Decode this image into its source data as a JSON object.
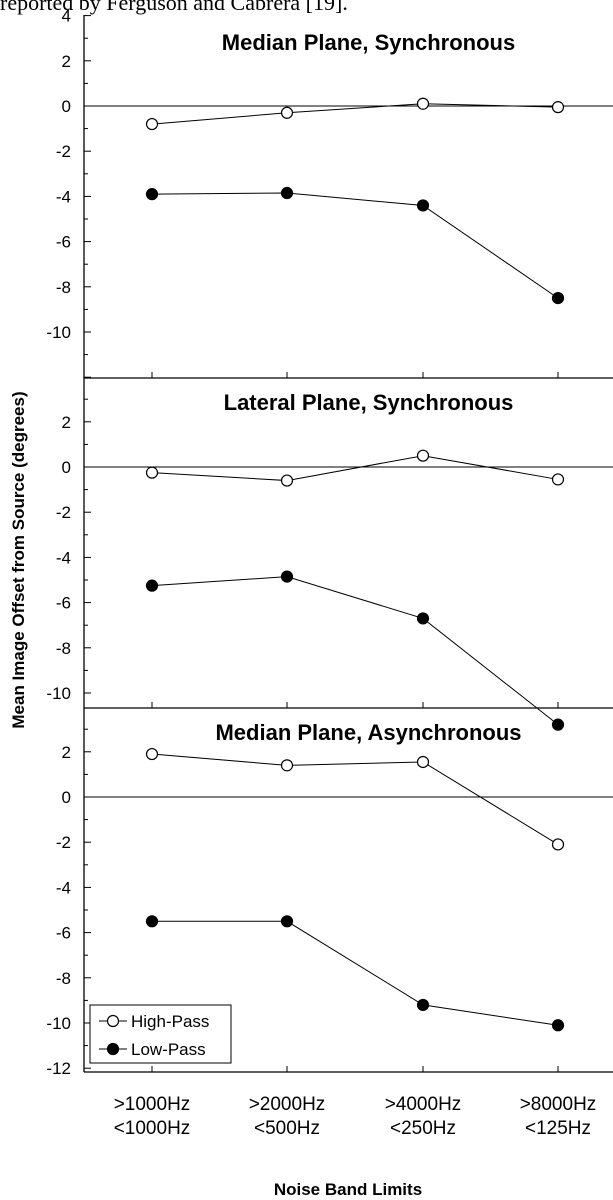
{
  "caption": "reported by Ferguson and Cabrera [19].",
  "chart_data": {
    "type": "line",
    "xlabel": "Noise Band Limits",
    "ylabel": "Mean Image Offset from Source (degrees)",
    "categories": [
      [
        ">1000Hz",
        "<1000Hz"
      ],
      [
        ">2000Hz",
        "<500Hz"
      ],
      [
        ">4000Hz",
        "<250Hz"
      ],
      [
        ">8000Hz",
        "<125Hz"
      ]
    ],
    "legend": {
      "placement": "bottom-left",
      "entries": [
        {
          "name": "High-Pass",
          "marker": "open-circle"
        },
        {
          "name": "Low-Pass",
          "marker": "filled-circle"
        }
      ]
    },
    "panels": [
      {
        "title": "Median Plane, Synchronous",
        "ylim": [
          -12,
          4
        ],
        "yticks": [
          -10,
          -8,
          -6,
          -4,
          -2,
          0,
          2,
          4
        ],
        "series": [
          {
            "name": "High-Pass",
            "values": [
              -0.8,
              -0.3,
              0.1,
              -0.05
            ]
          },
          {
            "name": "Low-Pass",
            "values": [
              -3.9,
              -3.85,
              -4.4,
              -8.5
            ]
          }
        ]
      },
      {
        "title": "Lateral Plane, Synchronous",
        "ylim": [
          -12,
          4
        ],
        "yticks": [
          -10,
          -8,
          -6,
          -4,
          -2,
          0,
          2
        ],
        "series": [
          {
            "name": "High-Pass",
            "values": [
              -0.25,
              -0.6,
              0.5,
              -0.55
            ]
          },
          {
            "name": "Low-Pass",
            "values": [
              -5.25,
              -4.85,
              -6.7,
              -11.4
            ]
          }
        ]
      },
      {
        "title": "Median Plane, Asynchronous",
        "ylim": [
          -12,
          4
        ],
        "yticks": [
          -12,
          -10,
          -8,
          -6,
          -4,
          -2,
          0,
          2
        ],
        "series": [
          {
            "name": "High-Pass",
            "values": [
              1.9,
              1.4,
              1.55,
              -2.1
            ]
          },
          {
            "name": "Low-Pass",
            "values": [
              -5.5,
              -5.5,
              -9.2,
              -10.1
            ]
          }
        ]
      }
    ]
  }
}
